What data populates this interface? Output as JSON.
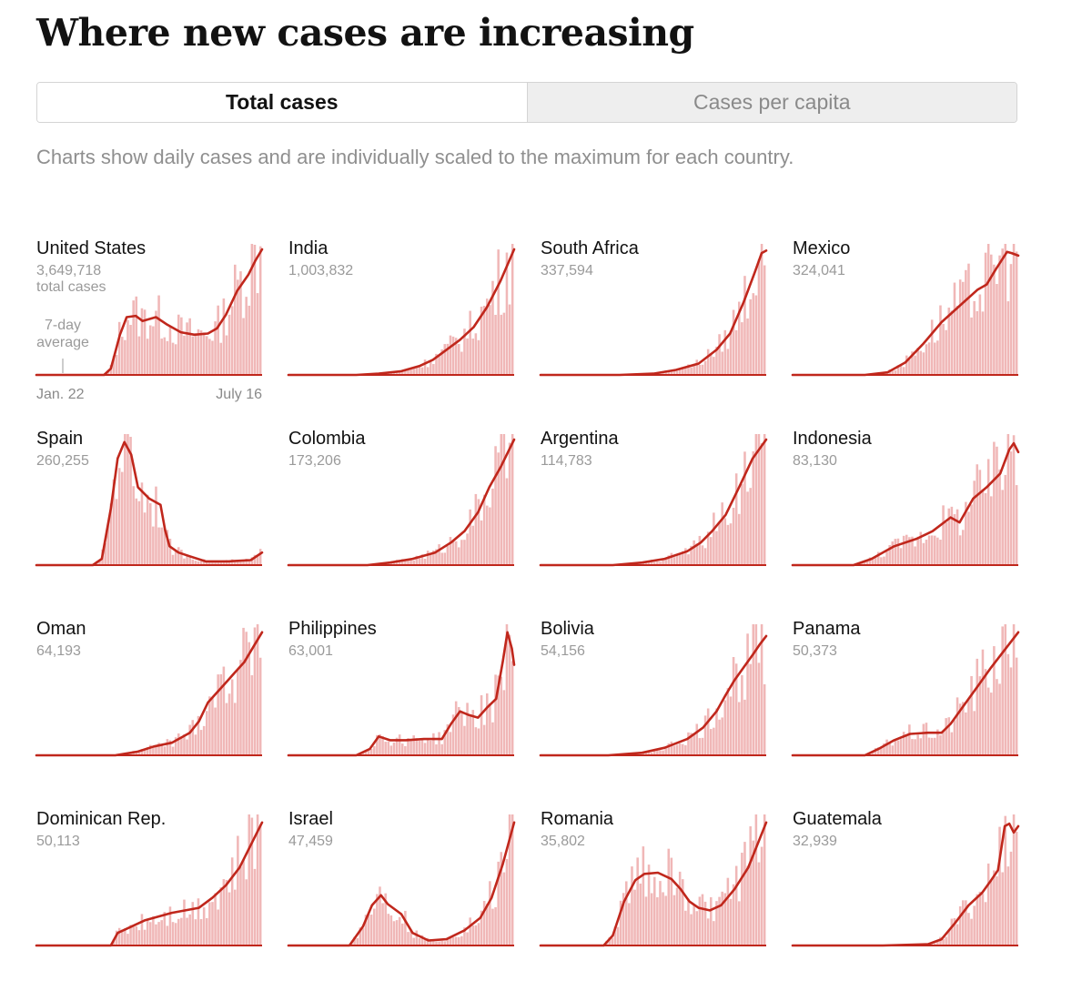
{
  "title": "Where new cases are increasing",
  "toggle": {
    "options": [
      "Total cases",
      "Cases per capita"
    ],
    "selected": "Total cases"
  },
  "subtitle": "Charts show daily cases and are individually scaled to the maximum for each country.",
  "colors": {
    "bar": "#f0b7b7",
    "line": "#c0271c",
    "baseline": "#c0271c"
  },
  "annotations": {
    "total_suffix": "total cases",
    "avg_label_1": "7-day",
    "avg_label_2": "average",
    "date_start": "Jan. 22",
    "date_end": "July 16"
  },
  "chart_data": [
    {
      "type": "area",
      "name": "United States",
      "total": "3,649,718",
      "x_range": [
        "Jan. 22",
        "July 16"
      ],
      "y_scale": "individual max",
      "points": [
        [
          0,
          0
        ],
        [
          0.3,
          0
        ],
        [
          0.33,
          0.05
        ],
        [
          0.37,
          0.32
        ],
        [
          0.4,
          0.46
        ],
        [
          0.44,
          0.47
        ],
        [
          0.47,
          0.43
        ],
        [
          0.53,
          0.46
        ],
        [
          0.58,
          0.4
        ],
        [
          0.64,
          0.34
        ],
        [
          0.7,
          0.32
        ],
        [
          0.76,
          0.33
        ],
        [
          0.8,
          0.37
        ],
        [
          0.84,
          0.48
        ],
        [
          0.89,
          0.67
        ],
        [
          0.94,
          0.8
        ],
        [
          0.97,
          0.91
        ],
        [
          1,
          1
        ]
      ]
    },
    {
      "type": "area",
      "name": "India",
      "total": "1,003,832",
      "x_range": [
        "Jan. 22",
        "July 16"
      ],
      "y_scale": "individual max",
      "points": [
        [
          0,
          0
        ],
        [
          0.3,
          0
        ],
        [
          0.4,
          0.01
        ],
        [
          0.5,
          0.03
        ],
        [
          0.58,
          0.07
        ],
        [
          0.64,
          0.12
        ],
        [
          0.7,
          0.2
        ],
        [
          0.76,
          0.28
        ],
        [
          0.82,
          0.38
        ],
        [
          0.88,
          0.54
        ],
        [
          0.94,
          0.75
        ],
        [
          1,
          1
        ]
      ]
    },
    {
      "type": "area",
      "name": "South Africa",
      "total": "337,594",
      "x_range": [
        "Jan. 22",
        "July 16"
      ],
      "y_scale": "individual max",
      "points": [
        [
          0,
          0
        ],
        [
          0.35,
          0
        ],
        [
          0.5,
          0.01
        ],
        [
          0.6,
          0.04
        ],
        [
          0.7,
          0.09
        ],
        [
          0.78,
          0.2
        ],
        [
          0.84,
          0.33
        ],
        [
          0.9,
          0.58
        ],
        [
          0.95,
          0.82
        ],
        [
          0.98,
          0.97
        ],
        [
          1,
          0.99
        ]
      ]
    },
    {
      "type": "area",
      "name": "Mexico",
      "total": "324,041",
      "x_range": [
        "Jan. 22",
        "July 16"
      ],
      "y_scale": "individual max",
      "points": [
        [
          0,
          0
        ],
        [
          0.32,
          0
        ],
        [
          0.42,
          0.02
        ],
        [
          0.5,
          0.1
        ],
        [
          0.58,
          0.25
        ],
        [
          0.66,
          0.42
        ],
        [
          0.74,
          0.55
        ],
        [
          0.82,
          0.68
        ],
        [
          0.86,
          0.72
        ],
        [
          0.9,
          0.84
        ],
        [
          0.95,
          0.98
        ],
        [
          0.97,
          0.97
        ],
        [
          1,
          0.95
        ]
      ]
    },
    {
      "type": "area",
      "name": "Spain",
      "total": "260,255",
      "x_range": [
        "Jan. 22",
        "July 16"
      ],
      "y_scale": "individual max",
      "points": [
        [
          0,
          0
        ],
        [
          0.25,
          0
        ],
        [
          0.29,
          0.05
        ],
        [
          0.33,
          0.45
        ],
        [
          0.36,
          0.85
        ],
        [
          0.39,
          0.98
        ],
        [
          0.42,
          0.88
        ],
        [
          0.45,
          0.62
        ],
        [
          0.5,
          0.53
        ],
        [
          0.55,
          0.48
        ],
        [
          0.57,
          0.28
        ],
        [
          0.59,
          0.15
        ],
        [
          0.63,
          0.1
        ],
        [
          0.68,
          0.07
        ],
        [
          0.75,
          0.03
        ],
        [
          0.85,
          0.03
        ],
        [
          0.95,
          0.04
        ],
        [
          1,
          0.1
        ]
      ]
    },
    {
      "type": "area",
      "name": "Colombia",
      "total": "173,206",
      "x_range": [
        "Jan. 22",
        "July 16"
      ],
      "y_scale": "individual max",
      "points": [
        [
          0,
          0
        ],
        [
          0.35,
          0
        ],
        [
          0.45,
          0.02
        ],
        [
          0.55,
          0.05
        ],
        [
          0.65,
          0.1
        ],
        [
          0.72,
          0.18
        ],
        [
          0.78,
          0.27
        ],
        [
          0.84,
          0.42
        ],
        [
          0.89,
          0.62
        ],
        [
          0.94,
          0.78
        ],
        [
          1,
          1
        ]
      ]
    },
    {
      "type": "area",
      "name": "Argentina",
      "total": "114,783",
      "x_range": [
        "Jan. 22",
        "July 16"
      ],
      "y_scale": "individual max",
      "points": [
        [
          0,
          0
        ],
        [
          0.32,
          0
        ],
        [
          0.45,
          0.02
        ],
        [
          0.55,
          0.05
        ],
        [
          0.65,
          0.11
        ],
        [
          0.71,
          0.18
        ],
        [
          0.76,
          0.27
        ],
        [
          0.82,
          0.4
        ],
        [
          0.88,
          0.62
        ],
        [
          0.94,
          0.85
        ],
        [
          1,
          1
        ]
      ]
    },
    {
      "type": "area",
      "name": "Indonesia",
      "total": "83,130",
      "x_range": [
        "Jan. 22",
        "July 16"
      ],
      "y_scale": "individual max",
      "points": [
        [
          0,
          0
        ],
        [
          0.27,
          0
        ],
        [
          0.35,
          0.05
        ],
        [
          0.45,
          0.15
        ],
        [
          0.55,
          0.21
        ],
        [
          0.62,
          0.27
        ],
        [
          0.7,
          0.38
        ],
        [
          0.74,
          0.34
        ],
        [
          0.8,
          0.53
        ],
        [
          0.86,
          0.62
        ],
        [
          0.92,
          0.73
        ],
        [
          0.96,
          0.92
        ],
        [
          0.98,
          0.97
        ],
        [
          1,
          0.9
        ]
      ]
    },
    {
      "type": "area",
      "name": "Oman",
      "total": "64,193",
      "x_range": [
        "Jan. 22",
        "July 16"
      ],
      "y_scale": "individual max",
      "points": [
        [
          0,
          0
        ],
        [
          0.35,
          0
        ],
        [
          0.45,
          0.03
        ],
        [
          0.52,
          0.07
        ],
        [
          0.6,
          0.1
        ],
        [
          0.68,
          0.18
        ],
        [
          0.72,
          0.27
        ],
        [
          0.76,
          0.42
        ],
        [
          0.8,
          0.5
        ],
        [
          0.85,
          0.6
        ],
        [
          0.88,
          0.66
        ],
        [
          0.92,
          0.74
        ],
        [
          0.96,
          0.86
        ],
        [
          1,
          0.98
        ]
      ]
    },
    {
      "type": "area",
      "name": "Philippines",
      "total": "63,001",
      "x_range": [
        "Jan. 22",
        "July 16"
      ],
      "y_scale": "individual max",
      "points": [
        [
          0,
          0
        ],
        [
          0.3,
          0
        ],
        [
          0.36,
          0.05
        ],
        [
          0.4,
          0.15
        ],
        [
          0.45,
          0.12
        ],
        [
          0.52,
          0.12
        ],
        [
          0.6,
          0.13
        ],
        [
          0.68,
          0.13
        ],
        [
          0.72,
          0.25
        ],
        [
          0.76,
          0.35
        ],
        [
          0.8,
          0.32
        ],
        [
          0.84,
          0.3
        ],
        [
          0.88,
          0.38
        ],
        [
          0.92,
          0.45
        ],
        [
          0.95,
          0.75
        ],
        [
          0.97,
          0.98
        ],
        [
          0.99,
          0.85
        ],
        [
          1,
          0.72
        ]
      ]
    },
    {
      "type": "area",
      "name": "Bolivia",
      "total": "54,156",
      "x_range": [
        "Jan. 22",
        "July 16"
      ],
      "y_scale": "individual max",
      "points": [
        [
          0,
          0
        ],
        [
          0.3,
          0
        ],
        [
          0.45,
          0.02
        ],
        [
          0.55,
          0.06
        ],
        [
          0.65,
          0.13
        ],
        [
          0.72,
          0.22
        ],
        [
          0.78,
          0.35
        ],
        [
          0.82,
          0.48
        ],
        [
          0.86,
          0.6
        ],
        [
          0.9,
          0.7
        ],
        [
          0.94,
          0.8
        ],
        [
          0.97,
          0.88
        ],
        [
          1,
          0.95
        ]
      ]
    },
    {
      "type": "area",
      "name": "Panama",
      "total": "50,373",
      "x_range": [
        "Jan. 22",
        "July 16"
      ],
      "y_scale": "individual max",
      "points": [
        [
          0,
          0
        ],
        [
          0.32,
          0
        ],
        [
          0.38,
          0.05
        ],
        [
          0.45,
          0.12
        ],
        [
          0.52,
          0.17
        ],
        [
          0.6,
          0.18
        ],
        [
          0.66,
          0.18
        ],
        [
          0.7,
          0.25
        ],
        [
          0.76,
          0.4
        ],
        [
          0.82,
          0.55
        ],
        [
          0.88,
          0.7
        ],
        [
          0.94,
          0.84
        ],
        [
          1,
          0.98
        ]
      ]
    },
    {
      "type": "area",
      "name": "Dominican Rep.",
      "total": "50,113",
      "x_range": [
        "Jan. 22",
        "July 16"
      ],
      "y_scale": "individual max",
      "points": [
        [
          0,
          0
        ],
        [
          0.33,
          0
        ],
        [
          0.36,
          0.1
        ],
        [
          0.42,
          0.15
        ],
        [
          0.48,
          0.2
        ],
        [
          0.54,
          0.23
        ],
        [
          0.6,
          0.26
        ],
        [
          0.66,
          0.28
        ],
        [
          0.72,
          0.3
        ],
        [
          0.78,
          0.38
        ],
        [
          0.84,
          0.48
        ],
        [
          0.9,
          0.62
        ],
        [
          0.95,
          0.8
        ],
        [
          1,
          0.98
        ]
      ]
    },
    {
      "type": "area",
      "name": "Israel",
      "total": "47,459",
      "x_range": [
        "Jan. 22",
        "July 16"
      ],
      "y_scale": "individual max",
      "points": [
        [
          0,
          0
        ],
        [
          0.27,
          0
        ],
        [
          0.33,
          0.15
        ],
        [
          0.37,
          0.32
        ],
        [
          0.41,
          0.4
        ],
        [
          0.44,
          0.33
        ],
        [
          0.5,
          0.25
        ],
        [
          0.55,
          0.1
        ],
        [
          0.62,
          0.04
        ],
        [
          0.7,
          0.05
        ],
        [
          0.78,
          0.12
        ],
        [
          0.85,
          0.22
        ],
        [
          0.9,
          0.38
        ],
        [
          0.95,
          0.65
        ],
        [
          1,
          0.98
        ]
      ]
    },
    {
      "type": "area",
      "name": "Romania",
      "total": "35,802",
      "x_range": [
        "Jan. 22",
        "July 16"
      ],
      "y_scale": "individual max",
      "points": [
        [
          0,
          0
        ],
        [
          0.28,
          0
        ],
        [
          0.32,
          0.08
        ],
        [
          0.37,
          0.35
        ],
        [
          0.42,
          0.52
        ],
        [
          0.46,
          0.57
        ],
        [
          0.52,
          0.58
        ],
        [
          0.58,
          0.53
        ],
        [
          0.62,
          0.45
        ],
        [
          0.66,
          0.35
        ],
        [
          0.7,
          0.3
        ],
        [
          0.75,
          0.28
        ],
        [
          0.8,
          0.32
        ],
        [
          0.86,
          0.45
        ],
        [
          0.92,
          0.62
        ],
        [
          0.96,
          0.8
        ],
        [
          1,
          0.98
        ]
      ]
    },
    {
      "type": "area",
      "name": "Guatemala",
      "total": "32,939",
      "x_range": [
        "Jan. 22",
        "July 16"
      ],
      "y_scale": "individual max",
      "points": [
        [
          0,
          0
        ],
        [
          0.4,
          0
        ],
        [
          0.6,
          0.01
        ],
        [
          0.66,
          0.05
        ],
        [
          0.72,
          0.18
        ],
        [
          0.78,
          0.32
        ],
        [
          0.84,
          0.42
        ],
        [
          0.88,
          0.52
        ],
        [
          0.91,
          0.6
        ],
        [
          0.94,
          0.95
        ],
        [
          0.96,
          0.97
        ],
        [
          0.98,
          0.9
        ],
        [
          1,
          0.95
        ]
      ]
    }
  ]
}
